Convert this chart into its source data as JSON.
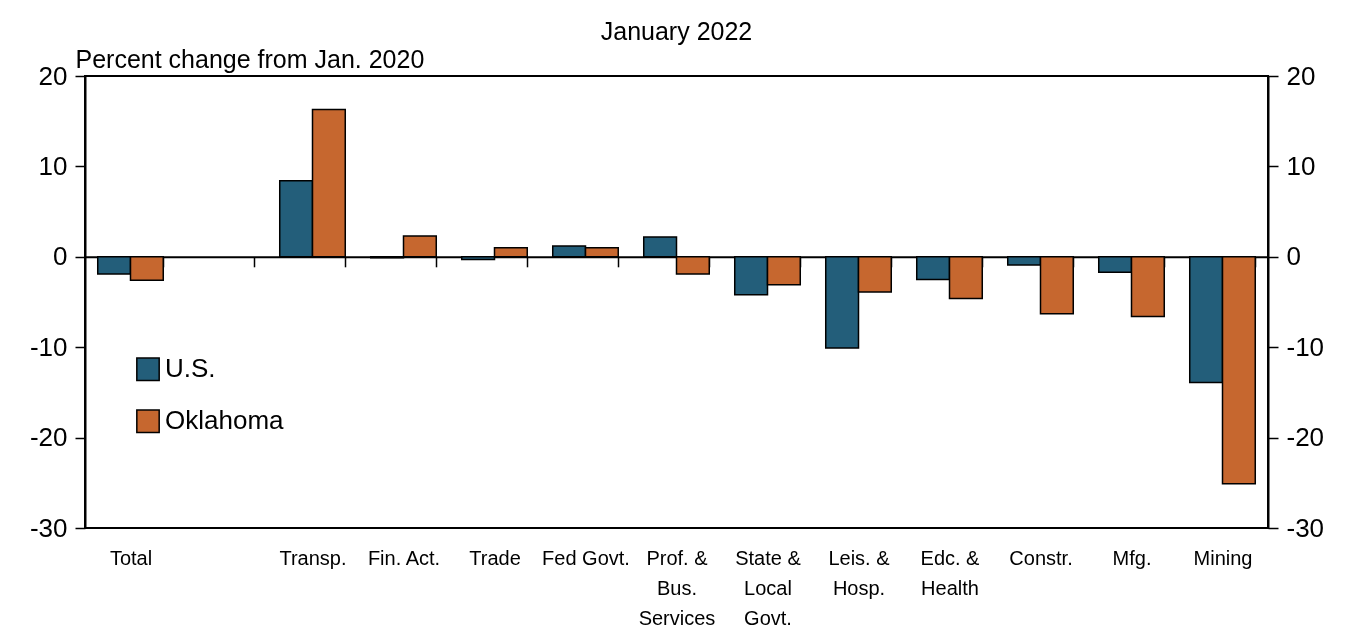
{
  "chart_data": {
    "type": "bar",
    "title": "January 2022",
    "ylabel": "Percent change from Jan. 2020",
    "categories": [
      "Total",
      null,
      "Transp.",
      "Fin. Act.",
      "Trade",
      "Fed Govt.",
      "Prof. & Bus. Services",
      "State & Local Govt.",
      "Leis. & Hosp.",
      "Edc. & Health",
      "Constr.",
      "Mfg.",
      "Mining"
    ],
    "series": [
      {
        "name": "U.S.",
        "color": "#235e7a",
        "values": [
          -1.9,
          null,
          8.4,
          -0.1,
          -0.3,
          1.2,
          2.2,
          -4.2,
          -10.1,
          -2.5,
          -0.9,
          -1.7,
          -13.9
        ]
      },
      {
        "name": "Oklahoma",
        "color": "#c6672f",
        "values": [
          -2.6,
          null,
          16.3,
          2.3,
          1.0,
          1.0,
          -1.9,
          -3.1,
          -3.9,
          -4.6,
          -6.3,
          -6.6,
          -25.1
        ]
      }
    ],
    "ylim": [
      -30,
      20
    ],
    "yticks": [
      -30,
      -20,
      -10,
      0,
      10,
      20
    ],
    "y2lim": [
      -30,
      20
    ],
    "y2ticks": [
      -30,
      -20,
      -10,
      0,
      10,
      20
    ],
    "legend": "left"
  }
}
